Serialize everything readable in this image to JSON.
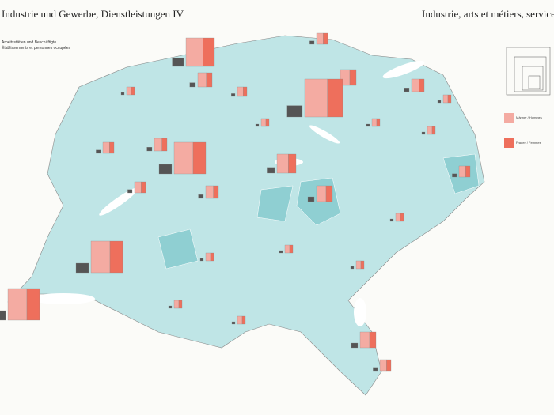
{
  "header": {
    "title_de": "Industrie und Gewerbe, Dienstleistungen IV",
    "title_fr": "Industrie, arts et métiers, services IV"
  },
  "legend": {
    "heading_de": "Arbeitsstätten und Beschäftigte",
    "heading_fr": "Établissements et personnes occupées",
    "men": "Männer / Hommes",
    "women": "Frauen / Femmes"
  }
}
